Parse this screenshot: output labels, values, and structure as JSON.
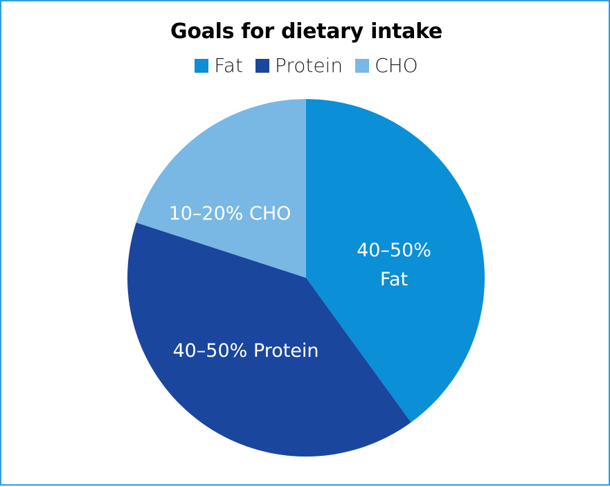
{
  "chart_data": {
    "type": "pie",
    "title": "Goals for dietary intake",
    "legend_position": "top",
    "start_angle_deg": 0,
    "direction": "clockwise",
    "slices": [
      {
        "name": "Fat",
        "value": 40,
        "color": "#0b8fd6",
        "label_lines": [
          "40–50%",
          "Fat"
        ]
      },
      {
        "name": "Protein",
        "value": 40,
        "color": "#1a469e",
        "label_lines": [
          "40–50% Protein"
        ]
      },
      {
        "name": "CHO",
        "value": 20,
        "color": "#79b8e4",
        "label_lines": [
          "10–20% CHO"
        ]
      }
    ]
  },
  "legend": {
    "items": [
      {
        "label": "Fat",
        "color": "#0b8fd6"
      },
      {
        "label": "Protein",
        "color": "#1a469e"
      },
      {
        "label": "CHO",
        "color": "#79b8e4"
      }
    ]
  }
}
